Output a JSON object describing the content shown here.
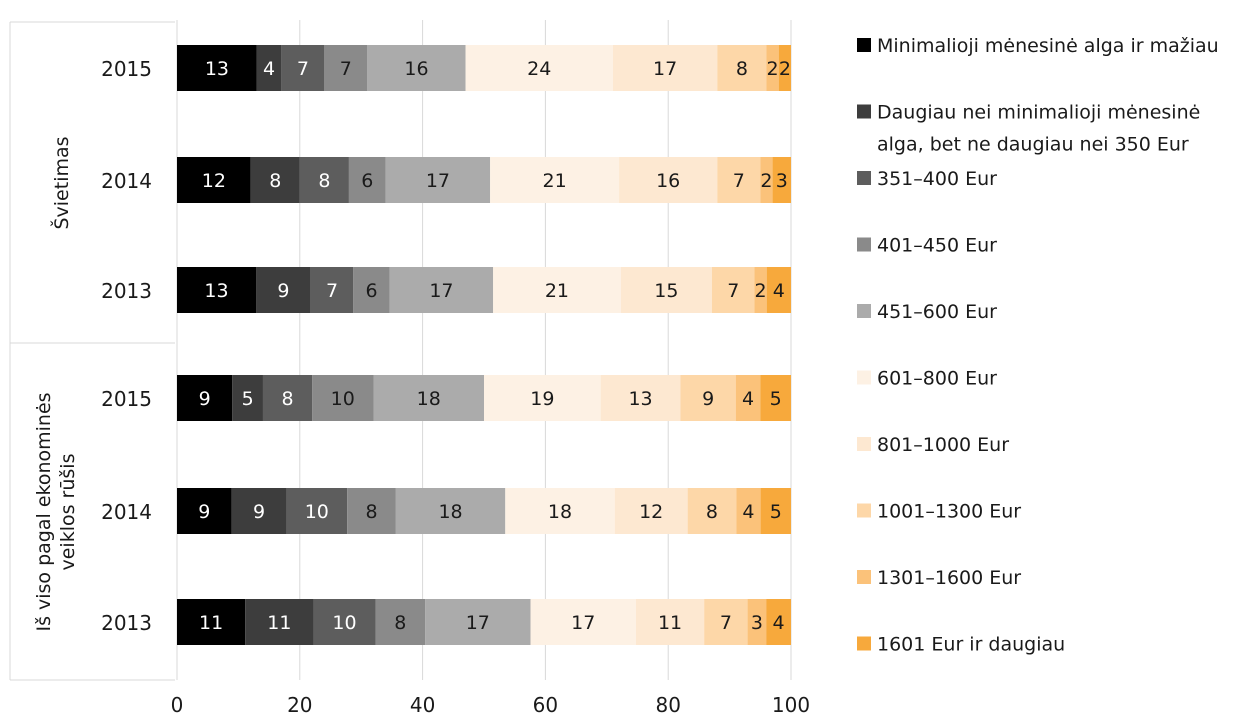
{
  "chart_data": {
    "type": "bar",
    "orientation": "horizontal",
    "stacked": true,
    "title": "",
    "xlabel": "",
    "ylabel": "",
    "xlim": [
      0,
      100
    ],
    "xticks": [
      "0",
      "20",
      "40",
      "60",
      "80",
      "100"
    ],
    "grid": true,
    "legend_position": "right",
    "groups": [
      {
        "name": "Švietimas",
        "rows": [
          "2015",
          "2014",
          "2013"
        ]
      },
      {
        "name": "Iš viso pagal ekonominės veiklos rūšis",
        "rows": [
          "2015",
          "2014",
          "2013"
        ]
      }
    ],
    "categories": [
      "2015",
      "2014",
      "2013",
      "2015",
      "2014",
      "2013"
    ],
    "series": [
      {
        "name": "Minimalioji mėnesinė alga ir mažiau",
        "color": "#000000",
        "values": [
          13,
          12,
          13,
          9,
          9,
          11
        ]
      },
      {
        "name": "Daugiau nei minimalioji mėnesinė alga, bet ne daugiau nei 350 Eur",
        "color": "#3d3d3d",
        "values": [
          4,
          8,
          9,
          5,
          9,
          11
        ]
      },
      {
        "name": "351–400 Eur",
        "color": "#5d5d5d",
        "values": [
          7,
          8,
          7,
          8,
          10,
          10
        ]
      },
      {
        "name": "401–450 Eur",
        "color": "#8a8a8a",
        "values": [
          7,
          6,
          6,
          10,
          8,
          8
        ]
      },
      {
        "name": "451–600 Eur",
        "color": "#ababab",
        "values": [
          16,
          17,
          17,
          18,
          18,
          17
        ]
      },
      {
        "name": "601–800 Eur",
        "color": "#fdf1e4",
        "values": [
          24,
          21,
          21,
          19,
          18,
          17
        ]
      },
      {
        "name": "801–1000 Eur",
        "color": "#fde8d1",
        "values": [
          17,
          16,
          15,
          13,
          12,
          11
        ]
      },
      {
        "name": "1001–1300 Eur",
        "color": "#fdd7a8",
        "values": [
          8,
          7,
          7,
          9,
          8,
          7
        ]
      },
      {
        "name": "1301–1600 Eur",
        "color": "#fbc27a",
        "values": [
          2,
          2,
          2,
          4,
          4,
          3
        ]
      },
      {
        "name": "1601 Eur ir daugiau",
        "color": "#f7a93c",
        "values": [
          2,
          3,
          4,
          5,
          5,
          4
        ]
      }
    ]
  }
}
